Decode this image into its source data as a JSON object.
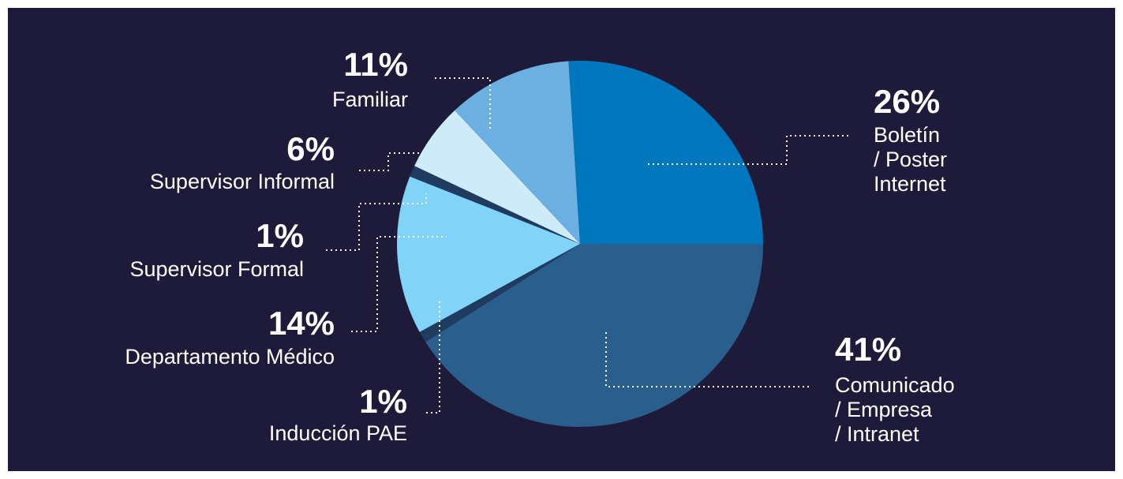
{
  "chart_data": {
    "type": "pie",
    "categories": [
      [
        "Comunicado",
        "/ Empresa",
        "/ Intranet"
      ],
      [
        "Inducción PAE"
      ],
      [
        "Departamento Médico"
      ],
      [
        "Supervisor Formal"
      ],
      [
        "Supervisor Informal"
      ],
      [
        "Familiar"
      ],
      [
        "Boletín",
        "/ Poster",
        "Internet"
      ]
    ],
    "values": [
      41,
      1,
      14,
      1,
      6,
      11,
      26
    ],
    "value_labels": [
      "41%",
      "1%",
      "14%",
      "1%",
      "6%",
      "11%",
      "26%"
    ],
    "colors": [
      "#2a5e8c",
      "#1f3b60",
      "#81d3f7",
      "#1f3b60",
      "#cdebf8",
      "#6cb0e2",
      "#0076bc"
    ]
  }
}
